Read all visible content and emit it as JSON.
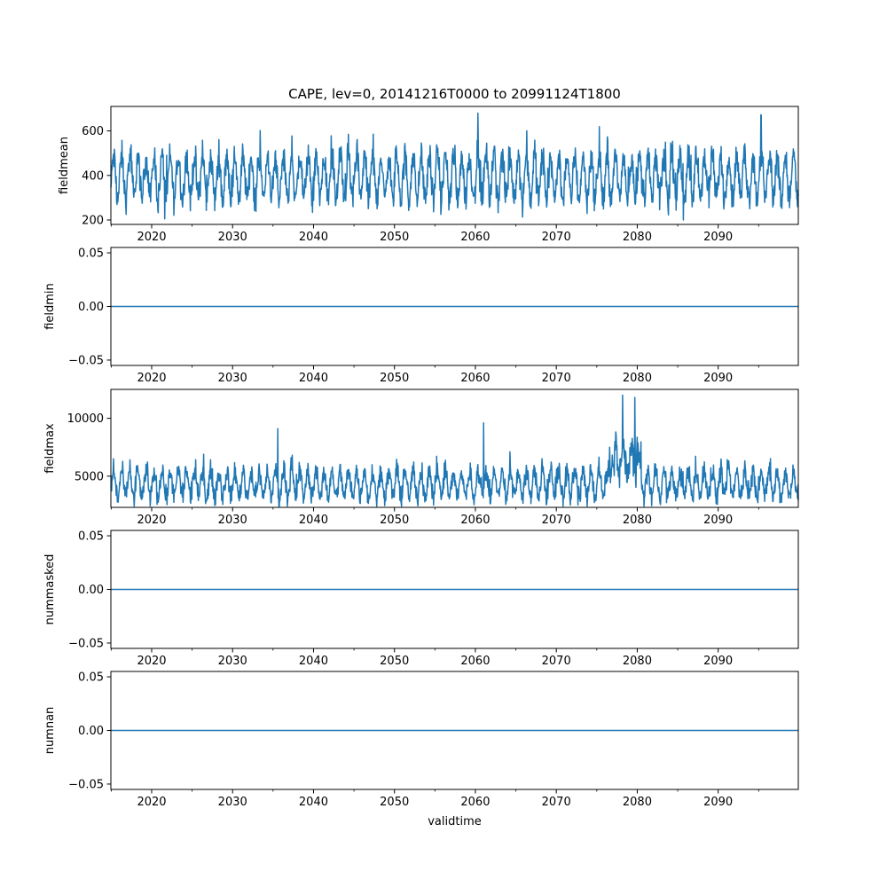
{
  "figure": {
    "title": "CAPE, lev=0, 20141216T0000 to 20991124T1800",
    "xlabel": "validtime"
  },
  "chart_data": [
    {
      "type": "line",
      "ylabel": "fieldmean",
      "xlim": [
        2014.96,
        2099.9
      ],
      "ylim": [
        180,
        710
      ],
      "xticks": [
        2020,
        2030,
        2040,
        2050,
        2060,
        2070,
        2080,
        2090
      ],
      "xtick_labels": [
        "2020",
        "2030",
        "2040",
        "2050",
        "2060",
        "2070",
        "2080",
        "2090"
      ],
      "yticks": [
        200,
        400,
        600
      ],
      "ytick_labels": [
        "200",
        "400",
        "600"
      ],
      "series": [
        {
          "name": "fieldmean",
          "color": "#1f77b4",
          "description": "dense seasonal time series, yearly oscillation",
          "baseline": 390,
          "seasonal_amplitude": 95,
          "noise": 55,
          "typical_min": 250,
          "typical_max": 580,
          "peaks": [
            {
              "x": 2060.3,
              "y": 680
            },
            {
              "x": 2095.3,
              "y": 672
            }
          ],
          "troughs": [
            {
              "x": 2085.7,
              "y": 200
            },
            {
              "x": 2021.6,
              "y": 205
            }
          ]
        }
      ]
    },
    {
      "type": "line",
      "ylabel": "fieldmin",
      "xlim": [
        2014.96,
        2099.9
      ],
      "ylim": [
        -0.055,
        0.055
      ],
      "xticks": [
        2020,
        2030,
        2040,
        2050,
        2060,
        2070,
        2080,
        2090
      ],
      "xtick_labels": [
        "2020",
        "2030",
        "2040",
        "2050",
        "2060",
        "2070",
        "2080",
        "2090"
      ],
      "yticks": [
        -0.05,
        0.0,
        0.05
      ],
      "ytick_labels": [
        "−0.05",
        "0.00",
        "0.05"
      ],
      "series": [
        {
          "name": "fieldmin",
          "color": "#1f77b4",
          "constant": 0.0
        }
      ]
    },
    {
      "type": "line",
      "ylabel": "fieldmax",
      "xlim": [
        2014.96,
        2099.9
      ],
      "ylim": [
        2300,
        12500
      ],
      "xticks": [
        2020,
        2030,
        2040,
        2050,
        2060,
        2070,
        2080,
        2090
      ],
      "xtick_labels": [
        "2020",
        "2030",
        "2040",
        "2050",
        "2060",
        "2070",
        "2080",
        "2090"
      ],
      "yticks": [
        5000,
        10000
      ],
      "ytick_labels": [
        "5000",
        "10000"
      ],
      "series": [
        {
          "name": "fieldmax",
          "color": "#1f77b4",
          "description": "dense seasonal time series with spikes, elevated around 2077-2080",
          "baseline": 4300,
          "seasonal_amplitude": 1100,
          "noise": 700,
          "typical_min": 2800,
          "typical_max": 6500,
          "peaks": [
            {
              "x": 2078.2,
              "y": 12000
            },
            {
              "x": 2079.7,
              "y": 11800
            },
            {
              "x": 2061.0,
              "y": 9600
            },
            {
              "x": 2035.6,
              "y": 9100
            }
          ],
          "elevated_range": [
            2076.5,
            2080.5
          ]
        }
      ]
    },
    {
      "type": "line",
      "ylabel": "nummasked",
      "xlim": [
        2014.96,
        2099.9
      ],
      "ylim": [
        -0.055,
        0.055
      ],
      "xticks": [
        2020,
        2030,
        2040,
        2050,
        2060,
        2070,
        2080,
        2090
      ],
      "xtick_labels": [
        "2020",
        "2030",
        "2040",
        "2050",
        "2060",
        "2070",
        "2080",
        "2090"
      ],
      "yticks": [
        -0.05,
        0.0,
        0.05
      ],
      "ytick_labels": [
        "−0.05",
        "0.00",
        "0.05"
      ],
      "series": [
        {
          "name": "nummasked",
          "color": "#1f77b4",
          "constant": 0.0
        }
      ]
    },
    {
      "type": "line",
      "ylabel": "numnan",
      "xlim": [
        2014.96,
        2099.9
      ],
      "ylim": [
        -0.055,
        0.055
      ],
      "xticks": [
        2020,
        2030,
        2040,
        2050,
        2060,
        2070,
        2080,
        2090
      ],
      "xtick_labels": [
        "2020",
        "2030",
        "2040",
        "2050",
        "2060",
        "2070",
        "2080",
        "2090"
      ],
      "yticks": [
        -0.05,
        0.0,
        0.05
      ],
      "ytick_labels": [
        "−0.05",
        "0.00",
        "0.05"
      ],
      "series": [
        {
          "name": "numnan",
          "color": "#1f77b4",
          "constant": 0.0
        }
      ]
    }
  ]
}
